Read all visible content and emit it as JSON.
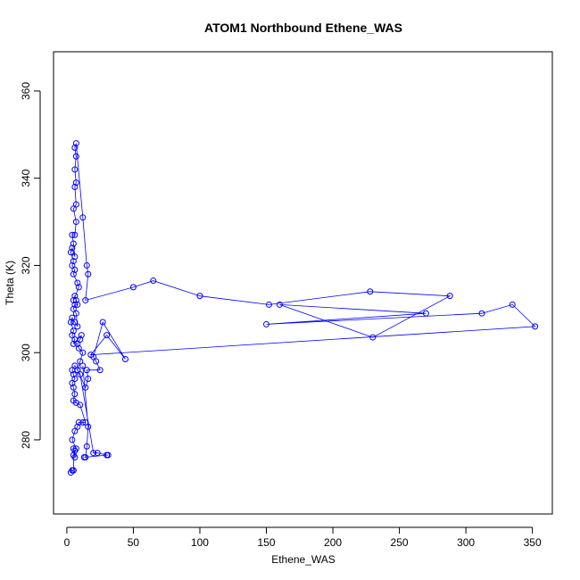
{
  "chart_data": {
    "type": "scatter",
    "title": "ATOM1 Northbound Ethene_WAS",
    "xlabel": "Ethene_WAS",
    "ylabel": "Theta (K)",
    "xlim": [
      -10,
      365
    ],
    "ylim": [
      263,
      369
    ],
    "xticks": [
      0,
      50,
      100,
      150,
      200,
      250,
      300,
      350
    ],
    "yticks": [
      280,
      300,
      320,
      340,
      360
    ],
    "grid": false,
    "legend": "none",
    "series_color": "#0000ff",
    "series": [
      {
        "values": [
          [
            3,
            272.5
          ],
          [
            4,
            273
          ],
          [
            5,
            273
          ],
          [
            5,
            276.5
          ],
          [
            6,
            277.5
          ],
          [
            6,
            276
          ],
          [
            5,
            278
          ],
          [
            7,
            278
          ],
          [
            4,
            280
          ],
          [
            6,
            282
          ],
          [
            8,
            283
          ],
          [
            9,
            284
          ],
          [
            12,
            284
          ],
          [
            14,
            284
          ],
          [
            10,
            288
          ],
          [
            7,
            288.5
          ],
          [
            5,
            289
          ],
          [
            6,
            290.5
          ],
          [
            5,
            292
          ],
          [
            4,
            293
          ],
          [
            6,
            294
          ],
          [
            5,
            295
          ],
          [
            4,
            296
          ],
          [
            6,
            297
          ],
          [
            8,
            296
          ],
          [
            10,
            298
          ],
          [
            12,
            300
          ],
          [
            9,
            301
          ],
          [
            8,
            302
          ],
          [
            10,
            303
          ],
          [
            11,
            304
          ],
          [
            5,
            302
          ],
          [
            6,
            303
          ],
          [
            4,
            304
          ],
          [
            5,
            305
          ],
          [
            3,
            307
          ],
          [
            4,
            308
          ],
          [
            6,
            307
          ],
          [
            8,
            306
          ],
          [
            7,
            309
          ],
          [
            5,
            310
          ],
          [
            6,
            311
          ],
          [
            8,
            311
          ],
          [
            7,
            312
          ],
          [
            6,
            313
          ],
          [
            5,
            312
          ],
          [
            9,
            315
          ],
          [
            8,
            316
          ],
          [
            5,
            318
          ],
          [
            6,
            319
          ],
          [
            4,
            320
          ],
          [
            5,
            321
          ],
          [
            3,
            323
          ],
          [
            4,
            324
          ],
          [
            6,
            322
          ],
          [
            5,
            325
          ],
          [
            4,
            327
          ],
          [
            6,
            327
          ],
          [
            7,
            330
          ],
          [
            5,
            333
          ],
          [
            7,
            334
          ],
          [
            6,
            338
          ],
          [
            7,
            339
          ],
          [
            6,
            342
          ],
          [
            7,
            345
          ],
          [
            6,
            347
          ],
          [
            7,
            348
          ],
          [
            12,
            331
          ],
          [
            15,
            320
          ],
          [
            16,
            318
          ],
          [
            14,
            312
          ],
          [
            50,
            315
          ],
          [
            65,
            316.5
          ],
          [
            100,
            313
          ],
          [
            152,
            311
          ],
          [
            228,
            314
          ],
          [
            288,
            313
          ],
          [
            230,
            303.5
          ],
          [
            160,
            311
          ],
          [
            270,
            309
          ],
          [
            150,
            306.5
          ],
          [
            312,
            309
          ],
          [
            335,
            311
          ],
          [
            352,
            306
          ],
          [
            18,
            299.5
          ],
          [
            30,
            304
          ],
          [
            44,
            298.5
          ],
          [
            27,
            307
          ],
          [
            20,
            299
          ],
          [
            22,
            298
          ],
          [
            25,
            296
          ],
          [
            15,
            296
          ],
          [
            16,
            294
          ],
          [
            14,
            292
          ],
          [
            8,
            296
          ],
          [
            10,
            295
          ],
          [
            20,
            277
          ],
          [
            23,
            277
          ],
          [
            30,
            276.5
          ],
          [
            31,
            276.5
          ],
          [
            13,
            276
          ],
          [
            14,
            276
          ],
          [
            15,
            278.5
          ],
          [
            16,
            283
          ],
          [
            12,
            297
          ]
        ]
      }
    ]
  }
}
